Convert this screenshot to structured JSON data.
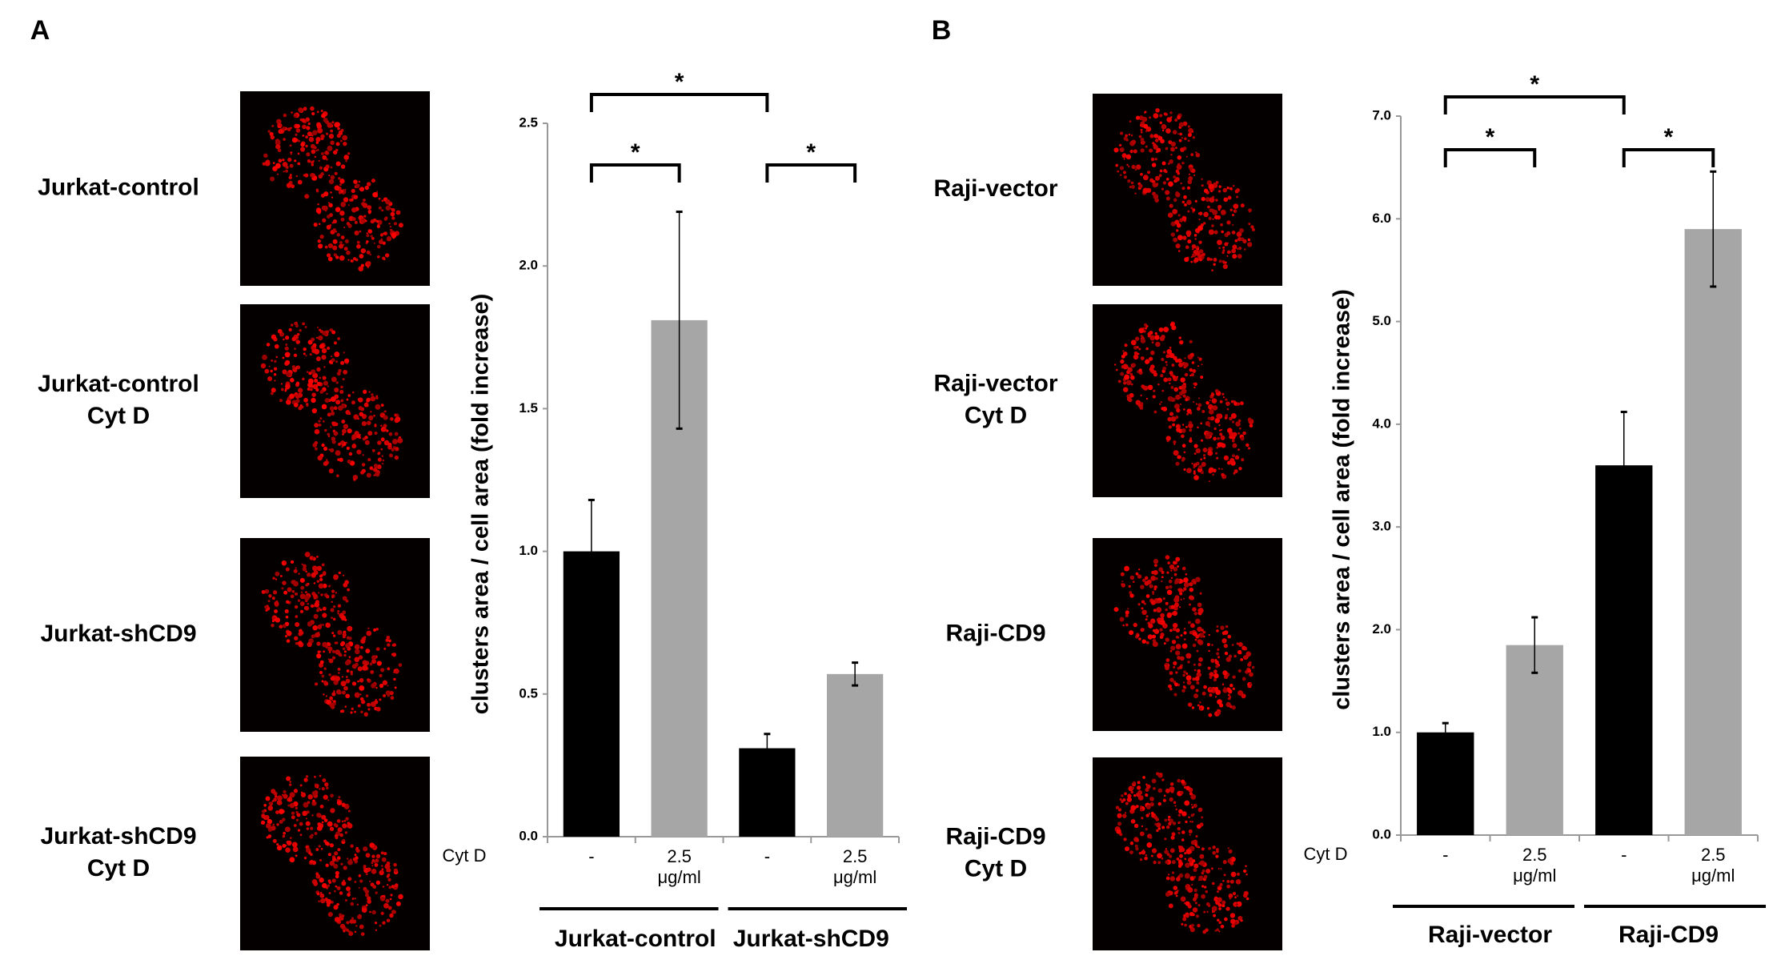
{
  "chart_data": [
    {
      "type": "bar",
      "panel_label": "A",
      "image_labels": [
        [
          "Jurkat-control"
        ],
        [
          "Jurkat-control",
          "Cyt D"
        ],
        [
          "Jurkat-shCD9"
        ],
        [
          "Jurkat-shCD9",
          "Cyt D"
        ]
      ],
      "y_label": "clusters area / cell area (fold increase)",
      "treatment_label": "Cyt D",
      "categories": [
        "-",
        "2.5 μg/ml",
        "-",
        "2.5 μg/ml"
      ],
      "values": [
        1.0,
        1.81,
        0.31,
        0.57
      ],
      "errors": [
        0.18,
        0.38,
        0.05,
        0.04
      ],
      "colors": [
        "#000000",
        "#a6a6a6",
        "#000000",
        "#a6a6a6"
      ],
      "groups": [
        "Jurkat-control",
        "Jurkat-shCD9"
      ],
      "significance": [
        {
          "from": 0,
          "to": 2,
          "label": "*"
        },
        {
          "from": 0,
          "to": 1,
          "label": "*"
        },
        {
          "from": 2,
          "to": 3,
          "label": "*"
        }
      ],
      "ylim": [
        0,
        2.5
      ],
      "yticks": [
        {
          "value": 0,
          "label": "0.0"
        },
        0.5,
        {
          "value": 1,
          "label": "1.0"
        },
        1.5,
        {
          "value": 2,
          "label": "2.0"
        },
        2.5
      ]
    },
    {
      "type": "bar",
      "panel_label": "B",
      "image_labels": [
        [
          "Raji-vector"
        ],
        [
          "Raji-vector",
          "Cyt D"
        ],
        [
          "Raji-CD9"
        ],
        [
          "Raji-CD9",
          "Cyt D"
        ]
      ],
      "y_label": "clusters area / cell area (fold increase)",
      "treatment_label": "Cyt D",
      "categories": [
        "-",
        "2.5 μg/ml",
        "-",
        "2.5 μg/ml"
      ],
      "values": [
        1.0,
        1.85,
        3.6,
        5.9
      ],
      "errors": [
        0.09,
        0.27,
        0.52,
        0.56
      ],
      "colors": [
        "#000000",
        "#a6a6a6",
        "#000000",
        "#a6a6a6"
      ],
      "groups": [
        "Raji-vector",
        "Raji-CD9"
      ],
      "significance": [
        {
          "from": 0,
          "to": 2,
          "label": "*"
        },
        {
          "from": 0,
          "to": 1,
          "label": "*"
        },
        {
          "from": 2,
          "to": 3,
          "label": "*"
        }
      ],
      "ylim": [
        0,
        7
      ],
      "yticks": [
        {
          "value": 0,
          "label": "0.0"
        },
        {
          "value": 1,
          "label": "1.0"
        },
        {
          "value": 2,
          "label": "2.0"
        },
        {
          "value": 3,
          "label": "3.0"
        },
        {
          "value": 4,
          "label": "4.0"
        },
        {
          "value": 5,
          "label": "5.0"
        },
        {
          "value": 6,
          "label": "6.0"
        },
        {
          "value": 7,
          "label": "7.0"
        }
      ]
    }
  ]
}
